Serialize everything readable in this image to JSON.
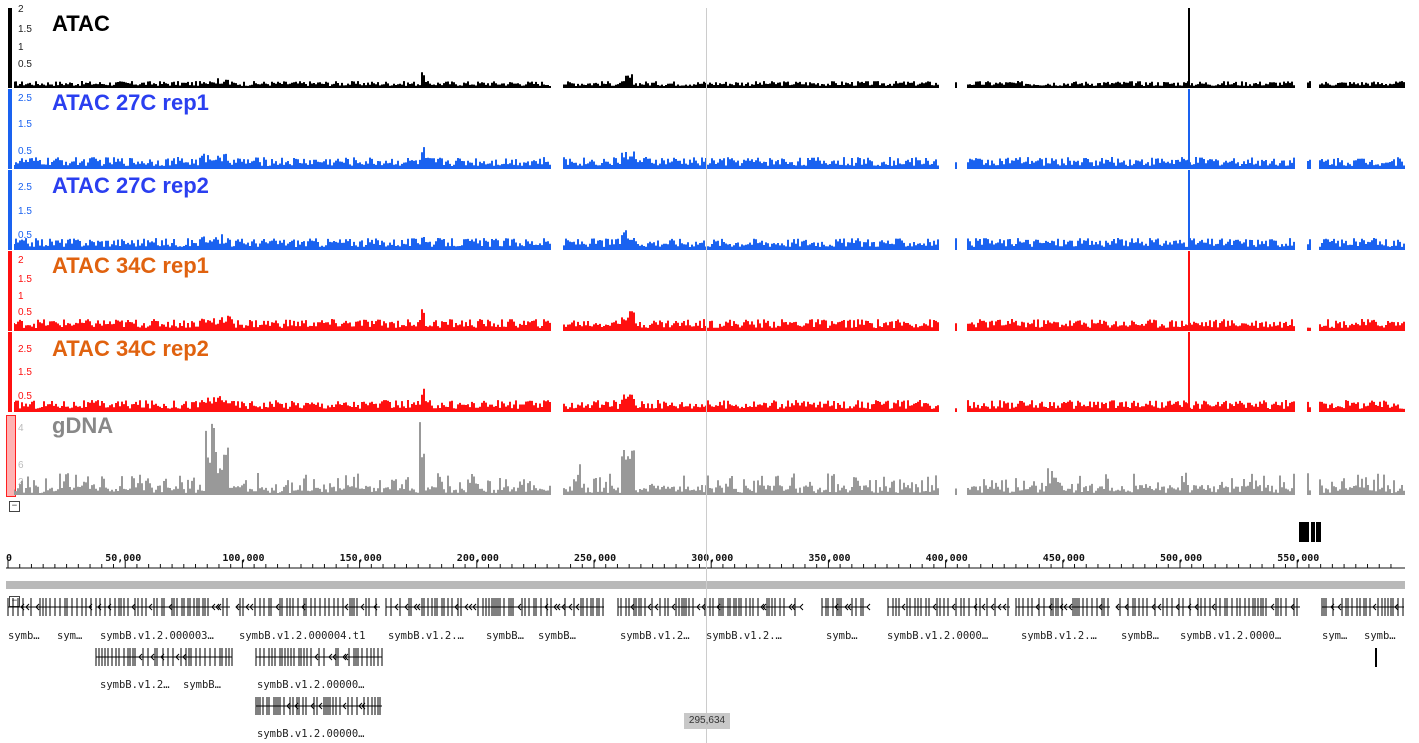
{
  "tracks": [
    {
      "id": "atac",
      "label": "ATAC",
      "label_color": "#000000",
      "color": "#000000",
      "scale_ticks": [
        "2",
        "1.5",
        "1",
        "0.5"
      ],
      "peak_profile": "pooled"
    },
    {
      "id": "atac-27c-rep1",
      "label": "ATAC 27C rep1",
      "label_color": "#2a3ff0",
      "color": "#1a62f0",
      "scale_ticks": [
        "2.5",
        "1.5",
        "0.5"
      ],
      "peak_profile": "rep"
    },
    {
      "id": "atac-27c-rep2",
      "label": "ATAC 27C rep2",
      "label_color": "#2a3ff0",
      "color": "#1a62f0",
      "scale_ticks": [
        "2.5",
        "1.5",
        "0.5"
      ],
      "peak_profile": "rep"
    },
    {
      "id": "atac-34c-rep1",
      "label": "ATAC 34C rep1",
      "label_color": "#e0620f",
      "color": "#ff1010",
      "scale_ticks": [
        "2",
        "1.5",
        "1",
        "0.5"
      ],
      "peak_profile": "rep"
    },
    {
      "id": "atac-34c-rep2",
      "label": "ATAC 34C rep2",
      "label_color": "#e0620f",
      "color": "#ff1010",
      "scale_ticks": [
        "2.5",
        "1.5",
        "0.5"
      ],
      "peak_profile": "rep"
    },
    {
      "id": "gdna",
      "label": "gDNA",
      "label_color": "#888888",
      "color": "#999999",
      "scale_ticks": [
        "4",
        "6",
        "2"
      ],
      "peak_profile": "gdna"
    }
  ],
  "ruler": {
    "labels": [
      "0",
      "50,000",
      "100,000",
      "150,000",
      "200,000",
      "250,000",
      "300,000",
      "350,000",
      "400,000",
      "450,000",
      "500,000",
      "550,000"
    ]
  },
  "cursor": {
    "position_label": "295,634"
  },
  "genes": {
    "row1": [
      "symb…",
      "sym…",
      "symbB.v1.2.000003…",
      "symbB.v1.2.000004.t1",
      "symbB.v1.2.…",
      "symbB…",
      "symbB…",
      "symbB.v1.2…",
      "symbB.v1.2.…",
      "symb…",
      "symbB.v1.2.0000…",
      "symbB.v1.2.…",
      "symbB…",
      "symbB.v1.2.0000…",
      "sym…",
      "symb…"
    ],
    "row2": [
      "symbB.v1.2…",
      "symbB…",
      "symbB.v1.2.00000…"
    ],
    "row3": [
      "symbB.v1.2.00000…"
    ]
  },
  "icons": {
    "collapse": "minus-box-icon"
  }
}
